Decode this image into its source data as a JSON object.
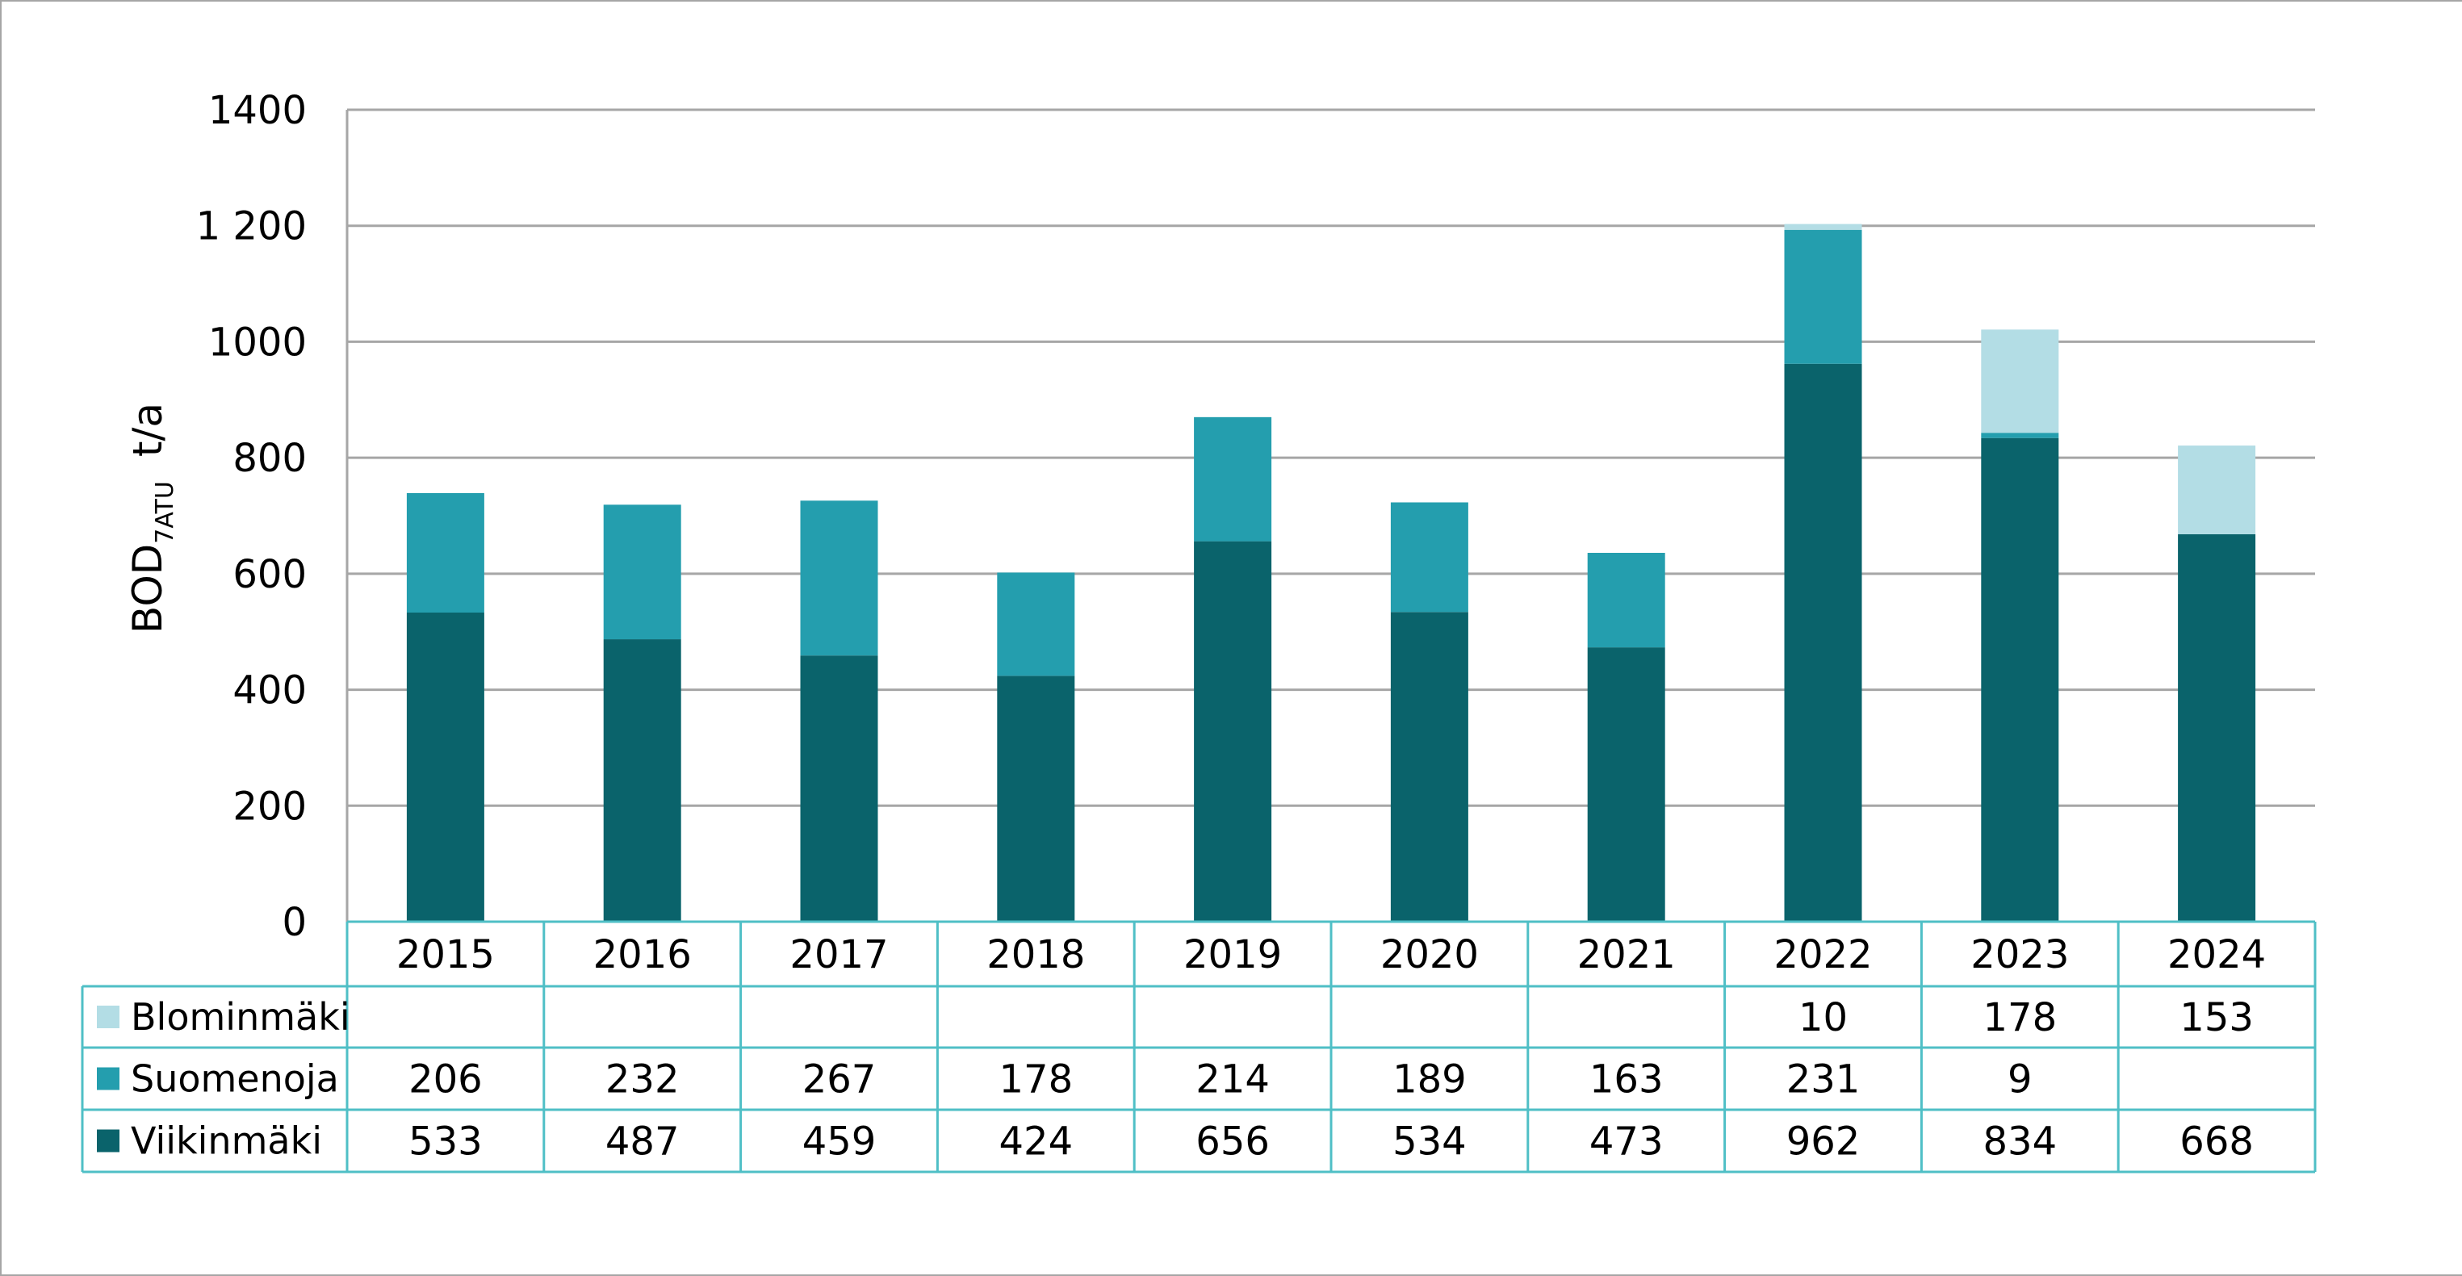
{
  "chart_data": {
    "type": "bar",
    "stacked": true,
    "ylabel": {
      "main": "BOD",
      "subscript": "7ATU",
      "unit": "t/a"
    },
    "ylim": [
      0,
      1400
    ],
    "yticks": [
      "0",
      "200",
      "400",
      "600",
      "800",
      "1000",
      "1 200",
      "1400"
    ],
    "ytick_values": [
      0,
      200,
      400,
      600,
      800,
      1000,
      1200,
      1400
    ],
    "grid": true,
    "legend_placement": "data-table-left",
    "categories": [
      "2015",
      "2016",
      "2017",
      "2018",
      "2019",
      "2020",
      "2021",
      "2022",
      "2023",
      "2024"
    ],
    "series": [
      {
        "name": "Viikinmäki",
        "color": "#0a636b",
        "values": [
          533,
          487,
          459,
          424,
          656,
          534,
          473,
          962,
          834,
          668
        ],
        "labels": [
          "533",
          "487",
          "459",
          "424",
          "656",
          "534",
          "473",
          "962",
          "834",
          "668"
        ]
      },
      {
        "name": "Suomenoja",
        "color": "#249eae",
        "values": [
          206,
          232,
          267,
          178,
          214,
          189,
          163,
          231,
          9,
          null
        ],
        "labels": [
          "206",
          "232",
          "267",
          "178",
          "214",
          "189",
          "163",
          "231",
          "9",
          ""
        ]
      },
      {
        "name": "Blominmäki",
        "color": "#b3dde5",
        "values": [
          null,
          null,
          null,
          null,
          null,
          null,
          null,
          10,
          178,
          153
        ],
        "labels": [
          "",
          "",
          "",
          "",
          "",
          "",
          "",
          "10",
          "178",
          "153"
        ]
      }
    ],
    "table_row_order": [
      "Blominmäki",
      "Suomenoja",
      "Viikinmäki"
    ],
    "colors": {
      "gridline": "#a6a6a6",
      "table_border": "#4fbfc6"
    }
  }
}
